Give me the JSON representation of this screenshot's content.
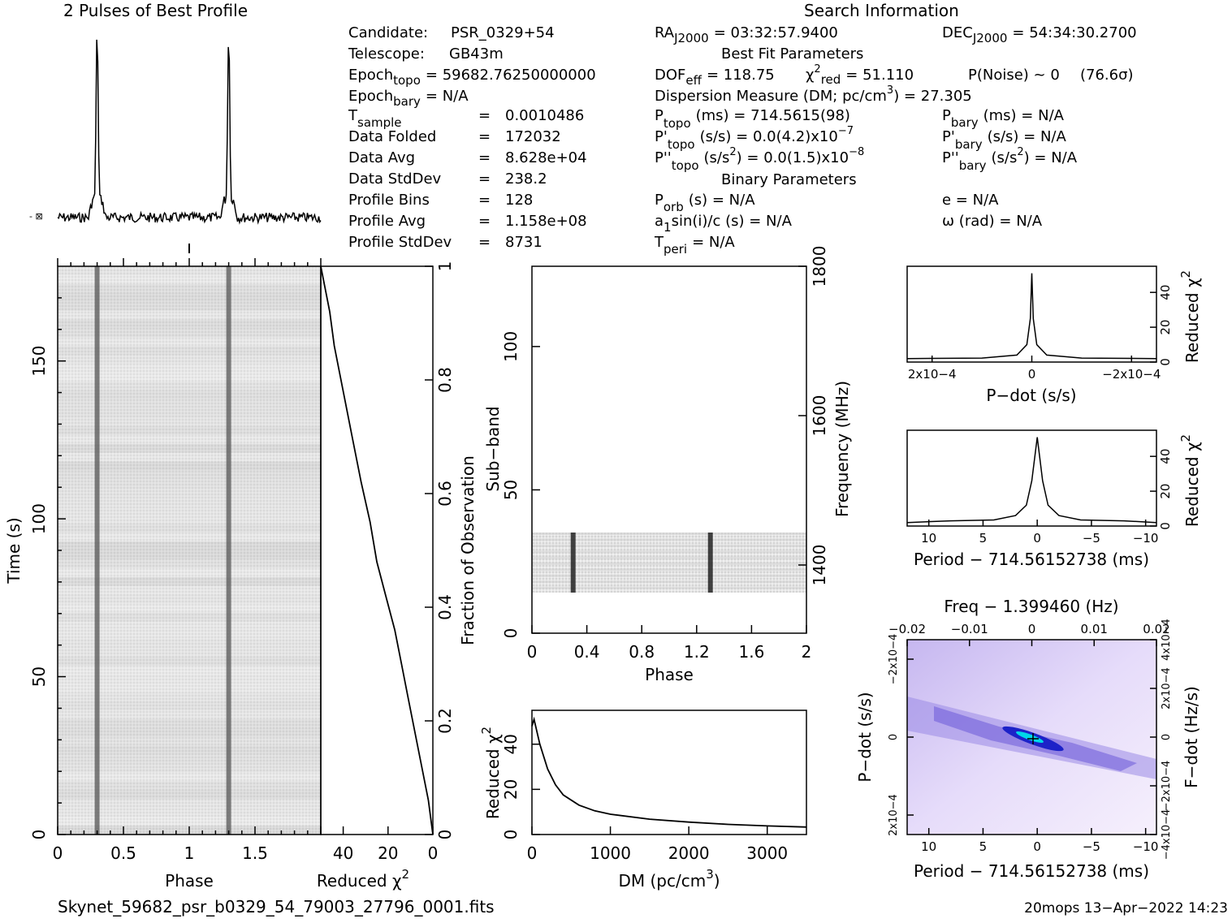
{
  "titles": {
    "profile": "2 Pulses of Best Profile",
    "search": "Search Information",
    "best_fit": "Best Fit Parameters",
    "binary": "Binary Parameters"
  },
  "info_left": [
    {
      "label": "Candidate:",
      "value": "PSR_0329+54"
    },
    {
      "label": "Telescope:",
      "value": "GB43m"
    },
    {
      "label": "Epoch",
      "sub": "topo",
      "value": "= 59682.76250000000"
    },
    {
      "label": "Epoch",
      "sub": "bary",
      "value": "= N/A"
    },
    {
      "label": "T",
      "sub": "sample",
      "value": "0.0010486"
    },
    {
      "label": "Data Folded",
      "value": "172032"
    },
    {
      "label": "Data Avg",
      "value": "8.628e+04"
    },
    {
      "label": "Data StdDev",
      "value": "238.2"
    },
    {
      "label": "Profile Bins",
      "value": "128"
    },
    {
      "label": "Profile Avg",
      "value": "1.158e+08"
    },
    {
      "label": "Profile StdDev",
      "value": "8731"
    }
  ],
  "info_right": {
    "ra": {
      "label": "RA",
      "sub": "J2000",
      "value": "= 03:32:57.9400"
    },
    "dec": {
      "label": "DEC",
      "sub": "J2000",
      "value": "= 54:34:30.2700"
    },
    "dof": {
      "label": "DOF",
      "sub": "eff",
      "value": "= 118.75"
    },
    "chi2": {
      "label": "χ",
      "sup": "2",
      "sub": "red",
      "value": "= 51.110"
    },
    "pnoise": "P(Noise) ~ 0",
    "sigma": "(76.6σ)",
    "dm_label": "Dispersion Measure (DM; pc/cm",
    "dm_sup": "3",
    "dm_value": ") = 27.305",
    "ptopo": {
      "label": "P",
      "sub": "topo",
      "value": "(ms) =  714.5615(98)"
    },
    "pbary": {
      "label": "P",
      "sub": "bary",
      "value": "(ms) = N/A"
    },
    "pdtopo": {
      "label": "P'",
      "sub": "topo",
      "value": "(s/s) = 0.0(4.2)x10",
      "sup": "−7"
    },
    "pdbary": {
      "label": "P'",
      "sub": "bary",
      "value": "(s/s) = N/A"
    },
    "pddtopo": {
      "label": "P''",
      "sub": "topo",
      "value": "(s/s",
      "sup": "2",
      "value2": ") = 0.0(1.5)x10",
      "sup2": "−8"
    },
    "pddbary": {
      "label": "P''",
      "sub": "bary",
      "value": "(s/s",
      "sup": "2",
      "value2": ") = N/A"
    },
    "porb": {
      "label": "P",
      "sub": "orb",
      "value": "(s) = N/A"
    },
    "ecc": "e = N/A",
    "a1": {
      "label": "a",
      "sub": "1",
      "value": "sin(i)/c (s) = N/A"
    },
    "omega": "ω (rad) = N/A",
    "tperi": {
      "label": "T",
      "sub": "peri",
      "value": "= N/A"
    }
  },
  "footer": {
    "filename": "Skynet_59682_psr_b0329_54_79003_27796_0001.fits",
    "stamp": "20mops 13−Apr−2022 14:23"
  },
  "axes": {
    "time_label": "Time (s)",
    "phase_label": "Phase",
    "redchi_label": "Reduced χ",
    "redchi_sup": "2",
    "fraction_label": "Fraction of Observation",
    "subband_label": "Sub−band",
    "frequency_label": "Frequency (MHz)",
    "dm_label": "DM (pc/cm",
    "dm_sup": "3",
    "dm_close": ")",
    "pdot_label": "P−dot (s/s)",
    "period_label": "Period − 714.56152738 (ms)",
    "freq_label": "Freq − 1.399460 (Hz)",
    "fdot_label": "F−dot (Hz/s)"
  },
  "chart_data": [
    {
      "type": "line",
      "title": "2 Pulses of Best Profile",
      "xlabel": "Phase",
      "x_range": [
        0,
        2
      ],
      "pulse_phases": [
        0.3,
        1.3
      ],
      "grid": false
    },
    {
      "type": "heatmap",
      "xlabel": "Phase",
      "ylabel": "Time (s)",
      "x_range": [
        0,
        2
      ],
      "y_range": [
        0,
        180
      ],
      "x_ticks": [
        "0",
        "0.5",
        "1",
        "1.5"
      ],
      "y_ticks": [
        "0",
        "50",
        "100",
        "150"
      ],
      "pulse_phases": [
        0.3,
        1.3
      ],
      "colormap": "grayscale"
    },
    {
      "type": "line",
      "xlabel": "Reduced χ2",
      "ylabel": "Fraction of Observation",
      "x_ticks": [
        "40",
        "20",
        "0"
      ],
      "y_ticks": [
        "0",
        "0.2",
        "0.4",
        "0.6",
        "0.8",
        "1"
      ],
      "x_range": [
        50,
        0
      ],
      "y_range": [
        0,
        1
      ],
      "series": [
        {
          "x": [
            0,
            2,
            5,
            8,
            11,
            14,
            17,
            21,
            25,
            28,
            32,
            36,
            40,
            44,
            46,
            48,
            50
          ],
          "y": [
            0,
            0.06,
            0.12,
            0.18,
            0.24,
            0.3,
            0.36,
            0.42,
            0.48,
            0.55,
            0.62,
            0.7,
            0.78,
            0.86,
            0.92,
            0.96,
            1.0
          ]
        }
      ]
    },
    {
      "type": "heatmap",
      "xlabel": "Phase",
      "ylabel": "Sub−band",
      "y2label": "Frequency (MHz)",
      "x_range": [
        0,
        2
      ],
      "y_range": [
        0,
        128
      ],
      "x_ticks": [
        "0",
        "0.4",
        "0.8",
        "1.2",
        "1.6",
        "2"
      ],
      "y_ticks": [
        "0",
        "50",
        "100"
      ],
      "y2_ticks": [
        "1400",
        "1600",
        "1800"
      ],
      "data_band": [
        15,
        35
      ],
      "pulse_phases": [
        0.3,
        1.3
      ],
      "colormap": "grayscale"
    },
    {
      "type": "line",
      "xlabel": "DM (pc/cm3)",
      "ylabel": "Reduced χ2",
      "x_range": [
        0,
        3500
      ],
      "y_range": [
        0,
        55
      ],
      "x_ticks": [
        "0",
        "1000",
        "2000",
        "3000"
      ],
      "y_ticks": [
        "0",
        "20",
        "40"
      ],
      "series": [
        {
          "x": [
            0,
            27,
            100,
            200,
            300,
            400,
            600,
            800,
            1000,
            1500,
            2000,
            2500,
            3000,
            3500
          ],
          "y": [
            48,
            51,
            40,
            29,
            22,
            17.5,
            13,
            10.5,
            9,
            6.8,
            5.5,
            4.5,
            3.8,
            3.3
          ]
        }
      ]
    },
    {
      "type": "line",
      "xlabel": "P−dot (s/s)",
      "ylabel": "Reduced χ2",
      "x_range": [
        0.00025,
        -0.00025
      ],
      "y_range": [
        0,
        55
      ],
      "x_ticks": [
        "2x10−4",
        "0",
        "−2x10−4"
      ],
      "y_ticks": [
        "0",
        "20",
        "40"
      ],
      "series": [
        {
          "x": [
            0.00025,
            0.0001,
            3e-05,
            1e-05,
            3e-06,
            0,
            -3e-06,
            -1e-05,
            -3e-05,
            -0.0001,
            -0.00025
          ],
          "y": [
            2,
            2.3,
            4,
            10,
            25,
            51,
            25,
            10,
            4,
            2.3,
            2
          ]
        }
      ]
    },
    {
      "type": "line",
      "xlabel": "Period − 714.56152738 (ms)",
      "ylabel": "Reduced χ2",
      "x_range": [
        12,
        -11
      ],
      "y_range": [
        0,
        55
      ],
      "x_ticks": [
        "10",
        "5",
        "0",
        "−5",
        "−10"
      ],
      "y_ticks": [
        "0",
        "20",
        "40"
      ],
      "series": [
        {
          "x": [
            12,
            8,
            4,
            2,
            1,
            0.5,
            0,
            -0.5,
            -1,
            -2,
            -4,
            -8,
            -11
          ],
          "y": [
            2,
            3,
            3.5,
            6,
            12,
            26,
            51,
            26,
            12,
            6,
            3.5,
            3,
            2
          ]
        }
      ]
    },
    {
      "type": "heatmap",
      "xlabel": "Period − 714.56152738 (ms)",
      "ylabel": "P−dot (s/s)",
      "x2label": "Freq − 1.399460 (Hz)",
      "y2label": "F−dot (Hz/s)",
      "x_range": [
        12,
        -11
      ],
      "y_range": [
        0.00025,
        -0.00025
      ],
      "x_ticks": [
        "10",
        "5",
        "0",
        "−5",
        "−10"
      ],
      "y_ticks": [
        "2x10−4",
        "0",
        "−2x10−4"
      ],
      "x2_ticks": [
        "−0.02",
        "−0.01",
        "0",
        "0.01",
        "0.02"
      ],
      "y2_ticks": [
        "−4x10−4",
        "−2x10−4",
        "0",
        "2x10−4",
        "4x10−4"
      ],
      "colormap": "white-purple-blue-cyan"
    }
  ]
}
